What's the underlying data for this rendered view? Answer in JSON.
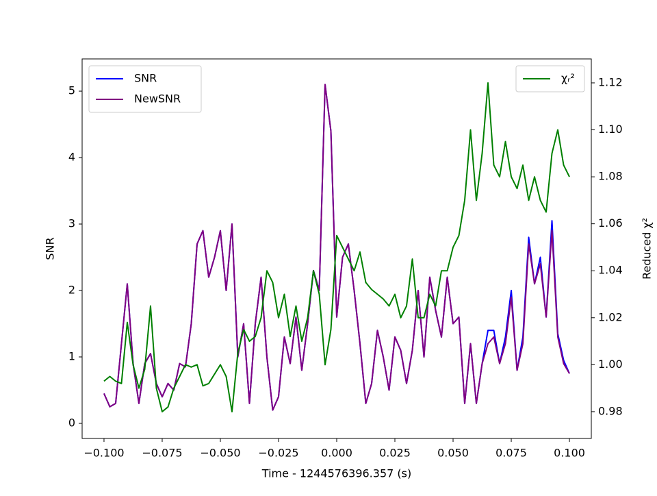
{
  "chart_data": {
    "type": "line",
    "xlabel": "Time - 1244576396.357 (s)",
    "ylabel": "SNR",
    "y2label": "Reduced χ²",
    "x": [
      -0.1,
      -0.0975,
      -0.095,
      -0.0925,
      -0.09,
      -0.0875,
      -0.085,
      -0.0825,
      -0.08,
      -0.0775,
      -0.075,
      -0.0725,
      -0.07,
      -0.0675,
      -0.065,
      -0.0625,
      -0.06,
      -0.0575,
      -0.055,
      -0.0525,
      -0.05,
      -0.0475,
      -0.045,
      -0.0425,
      -0.04,
      -0.0375,
      -0.035,
      -0.0325,
      -0.03,
      -0.0275,
      -0.025,
      -0.0225,
      -0.02,
      -0.0175,
      -0.015,
      -0.0125,
      -0.01,
      -0.0075,
      -0.005,
      -0.0025,
      0,
      0.0025,
      0.005,
      0.0075,
      0.01,
      0.0125,
      0.015,
      0.0175,
      0.02,
      0.0225,
      0.025,
      0.0275,
      0.03,
      0.0325,
      0.035,
      0.0375,
      0.04,
      0.0425,
      0.045,
      0.0475,
      0.05,
      0.0525,
      0.055,
      0.0575,
      0.06,
      0.0625,
      0.065,
      0.0675,
      0.07,
      0.0725,
      0.075,
      0.0775,
      0.08,
      0.0825,
      0.085,
      0.0875,
      0.09,
      0.0925,
      0.095,
      0.0975,
      0.1
    ],
    "series": [
      {
        "name": "SNR",
        "color": "#0000ff",
        "values": [
          0.45,
          0.25,
          0.3,
          1.2,
          2.1,
          0.9,
          0.3,
          0.9,
          1.05,
          0.6,
          0.4,
          0.6,
          0.5,
          0.9,
          0.85,
          1.5,
          2.7,
          2.9,
          2.2,
          2.5,
          2.9,
          2.0,
          3.0,
          1.0,
          1.5,
          0.3,
          1.5,
          2.2,
          1.0,
          0.2,
          0.4,
          1.3,
          0.9,
          1.6,
          0.8,
          1.5,
          2.3,
          2.0,
          5.1,
          4.4,
          1.6,
          2.5,
          2.7,
          2.0,
          1.2,
          0.3,
          0.6,
          1.4,
          1.0,
          0.5,
          1.3,
          1.1,
          0.6,
          1.1,
          2.0,
          1.0,
          2.2,
          1.7,
          1.3,
          2.2,
          1.5,
          1.6,
          0.3,
          1.2,
          0.3,
          0.9,
          1.4,
          1.4,
          0.9,
          1.3,
          2.0,
          0.8,
          1.3,
          2.8,
          2.1,
          2.5,
          1.6,
          3.05,
          1.35,
          0.95,
          0.75
        ]
      },
      {
        "name": "NewSNR",
        "color": "#800080",
        "values": [
          0.45,
          0.25,
          0.3,
          1.2,
          2.1,
          0.9,
          0.3,
          0.9,
          1.05,
          0.6,
          0.4,
          0.6,
          0.5,
          0.9,
          0.85,
          1.5,
          2.7,
          2.9,
          2.2,
          2.5,
          2.9,
          2.0,
          3.0,
          1.0,
          1.5,
          0.3,
          1.5,
          2.2,
          1.0,
          0.2,
          0.4,
          1.3,
          0.9,
          1.6,
          0.8,
          1.5,
          2.3,
          2.0,
          5.1,
          4.4,
          1.6,
          2.5,
          2.7,
          2.0,
          1.2,
          0.3,
          0.6,
          1.4,
          1.0,
          0.5,
          1.3,
          1.1,
          0.6,
          1.1,
          2.0,
          1.0,
          2.2,
          1.7,
          1.3,
          2.2,
          1.5,
          1.6,
          0.3,
          1.2,
          0.3,
          0.9,
          1.2,
          1.3,
          0.9,
          1.2,
          1.9,
          0.8,
          1.2,
          2.7,
          2.1,
          2.4,
          1.6,
          2.9,
          1.3,
          0.9,
          0.75
        ]
      },
      {
        "name": "χᵣ²",
        "color": "#008000",
        "axis": "y2",
        "values": [
          0.993,
          0.995,
          0.993,
          0.992,
          1.018,
          1.0,
          0.99,
          0.998,
          1.025,
          0.99,
          0.98,
          0.982,
          0.99,
          0.995,
          1.0,
          0.999,
          1.0,
          0.991,
          0.992,
          0.996,
          1.0,
          0.995,
          0.98,
          1.005,
          1.015,
          1.01,
          1.012,
          1.02,
          1.04,
          1.035,
          1.02,
          1.03,
          1.012,
          1.025,
          1.01,
          1.02,
          1.04,
          1.03,
          1.0,
          1.015,
          1.055,
          1.05,
          1.045,
          1.04,
          1.048,
          1.035,
          1.032,
          1.03,
          1.028,
          1.025,
          1.03,
          1.02,
          1.025,
          1.045,
          1.02,
          1.02,
          1.03,
          1.025,
          1.04,
          1.04,
          1.05,
          1.055,
          1.07,
          1.1,
          1.07,
          1.09,
          1.12,
          1.085,
          1.08,
          1.095,
          1.08,
          1.075,
          1.085,
          1.07,
          1.08,
          1.07,
          1.065,
          1.09,
          1.1,
          1.085,
          1.08
        ]
      }
    ],
    "xlim": [
      -0.1094,
      0.1094
    ],
    "xticks": [
      {
        "value": -0.1,
        "label": "−0.100"
      },
      {
        "value": -0.075,
        "label": "−0.075"
      },
      {
        "value": -0.05,
        "label": "−0.050"
      },
      {
        "value": -0.025,
        "label": "−0.025"
      },
      {
        "value": 0,
        "label": "0.000"
      },
      {
        "value": 0.025,
        "label": "0.025"
      },
      {
        "value": 0.05,
        "label": "0.050"
      },
      {
        "value": 0.075,
        "label": "0.075"
      },
      {
        "value": 0.1,
        "label": "0.100"
      }
    ],
    "ylim": [
      -0.227,
      5.485
    ],
    "yticks": [
      0,
      1,
      2,
      3,
      4,
      5
    ],
    "y2lim": [
      0.9686,
      1.1302
    ],
    "y2ticks": [
      0.98,
      {
        "value": 1.0,
        "label": "1.00"
      },
      1.02,
      1.04,
      1.06,
      1.08,
      {
        "value": 1.1,
        "label": "1.10"
      },
      1.12
    ],
    "legend": "upper left",
    "legend2": "upper right"
  }
}
